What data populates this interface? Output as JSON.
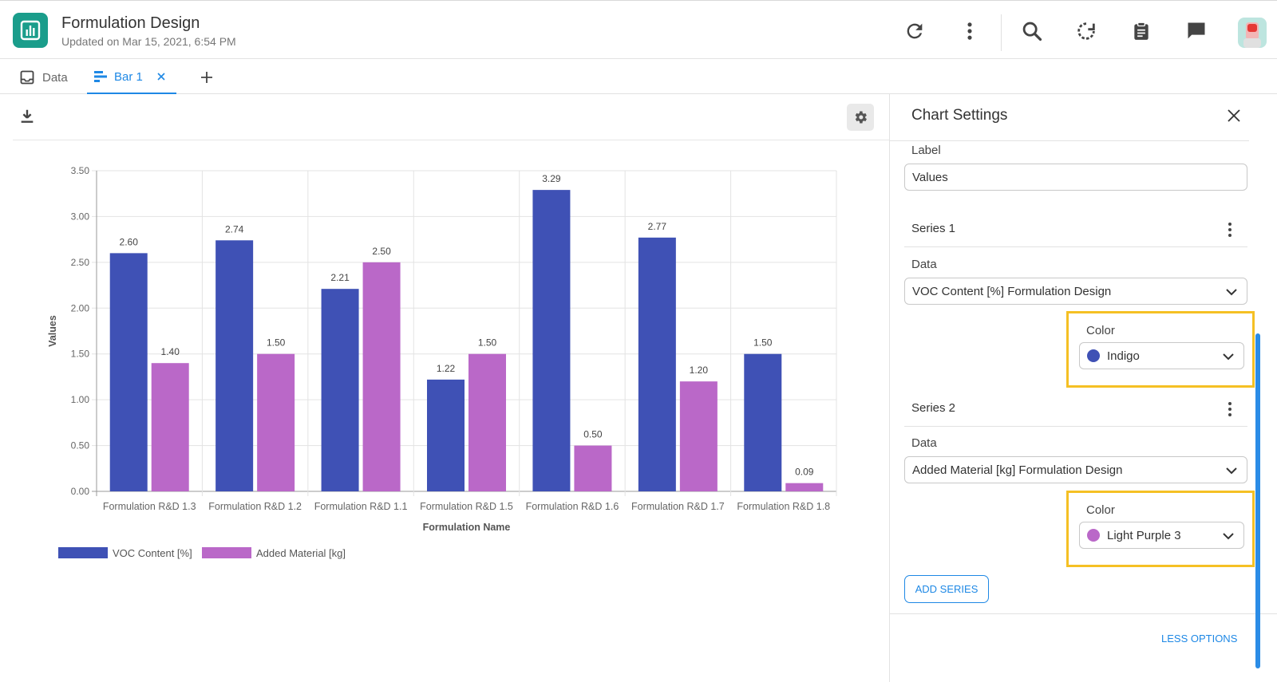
{
  "header": {
    "title": "Formulation Design",
    "subtitle": "Updated on Mar 15, 2021, 6:54 PM",
    "icons": [
      "refresh-icon",
      "more-vert-icon",
      "search-icon",
      "sync-icon",
      "clipboard-icon",
      "chat-icon",
      "avatar"
    ]
  },
  "tabs": [
    {
      "label": "Data",
      "icon": "inbox-icon"
    },
    {
      "label": "Bar 1",
      "icon": "bar-chart-icon"
    }
  ],
  "chart_data": {
    "type": "bar",
    "categories": [
      "Formulation R&D 1.3",
      "Formulation R&D 1.2",
      "Formulation R&D 1.1",
      "Formulation R&D 1.5",
      "Formulation R&D 1.6",
      "Formulation R&D 1.7",
      "Formulation R&D 1.8"
    ],
    "series": [
      {
        "name": "VOC Content [%]",
        "color": "#3f51b5",
        "values": [
          2.6,
          2.74,
          2.21,
          1.22,
          3.29,
          2.77,
          1.5
        ],
        "labels": [
          "2.60",
          "2.74",
          "2.21",
          "1.22",
          "3.29",
          "2.77",
          "1.50"
        ]
      },
      {
        "name": "Added Material [kg]",
        "color": "#ba68c8",
        "values": [
          1.4,
          1.5,
          2.5,
          1.5,
          0.5,
          1.2,
          0.09
        ],
        "labels": [
          "1.40",
          "1.50",
          "2.50",
          "1.50",
          "0.50",
          "1.20",
          "0.09"
        ]
      }
    ],
    "xlabel": "Formulation Name",
    "ylabel": "Values",
    "ylim": [
      0,
      3.5
    ],
    "yticks": [
      "0.00",
      "0.50",
      "1.00",
      "1.50",
      "2.00",
      "2.50",
      "3.00",
      "3.50"
    ],
    "grid": true,
    "legend": "bottom-left"
  },
  "panel": {
    "title": "Chart Settings",
    "label_caption": "Label",
    "label_value": "Values",
    "series": [
      {
        "title": "Series 1",
        "data_caption": "Data",
        "data_value": "VOC Content [%] Formulation Design",
        "color_caption": "Color",
        "color_name": "Indigo",
        "color_hex": "#3f51b5"
      },
      {
        "title": "Series 2",
        "data_caption": "Data",
        "data_value": "Added Material [kg] Formulation Design",
        "color_caption": "Color",
        "color_name": "Light Purple 3",
        "color_hex": "#ba68c8"
      }
    ],
    "add_series": "ADD SERIES",
    "less_options": "LESS OPTIONS",
    "highlight_color": "#f5c024",
    "accent": "#1e88e5"
  }
}
